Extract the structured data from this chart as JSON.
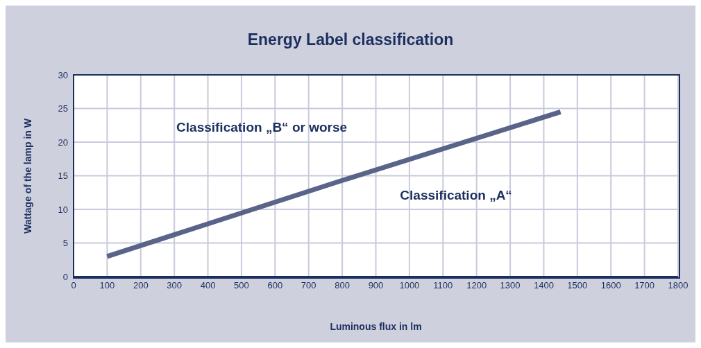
{
  "chart_data": {
    "type": "line",
    "title": "Energy Label classification",
    "xlabel": "Luminous flux in lm",
    "ylabel": "Wattage of the lamp in W",
    "x": [
      100,
      800,
      1450
    ],
    "series": [
      {
        "color": "#5a6488",
        "values": [
          3,
          14.3,
          24.5
        ]
      }
    ],
    "xlim": [
      0,
      1800
    ],
    "xticks": [
      0,
      100,
      200,
      300,
      400,
      500,
      600,
      700,
      800,
      900,
      1000,
      1100,
      1200,
      1300,
      1400,
      1500,
      1600,
      1700,
      1800
    ],
    "ylim": [
      0,
      30
    ],
    "yticks": [
      0,
      5,
      10,
      15,
      20,
      25,
      30
    ],
    "grid": true,
    "annotations": [
      "Classification „B“ or worse",
      "Classification „A“"
    ]
  }
}
